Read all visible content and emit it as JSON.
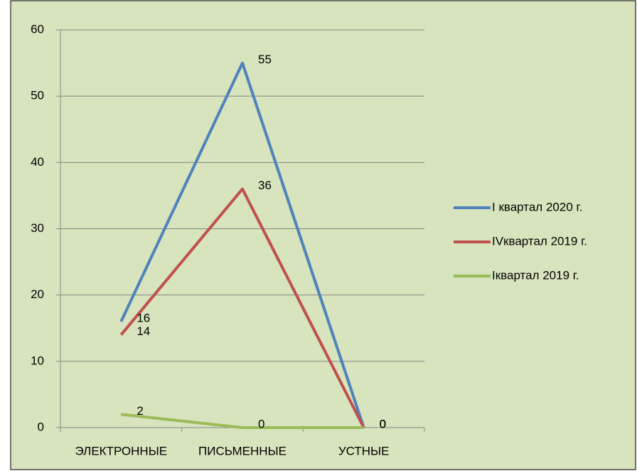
{
  "chart_data": {
    "type": "line",
    "categories": [
      "ЭЛЕКТРОННЫЕ",
      "ПИСЬМЕННЫЕ",
      "УСТНЫЕ"
    ],
    "series": [
      {
        "name": "I квартал 2020 г.",
        "color": "#4f81bd",
        "values": [
          16,
          55,
          0
        ]
      },
      {
        "name": "IVквартал 2019 г.",
        "color": "#c0504d",
        "values": [
          14,
          36,
          0
        ]
      },
      {
        "name": "Iквартал 2019 г.",
        "color": "#9bbb59",
        "values": [
          2,
          0,
          0
        ]
      }
    ],
    "ylim": [
      0,
      60
    ],
    "yticks": [
      0,
      10,
      20,
      30,
      40,
      50,
      60
    ],
    "grid": true,
    "legend": "right"
  }
}
